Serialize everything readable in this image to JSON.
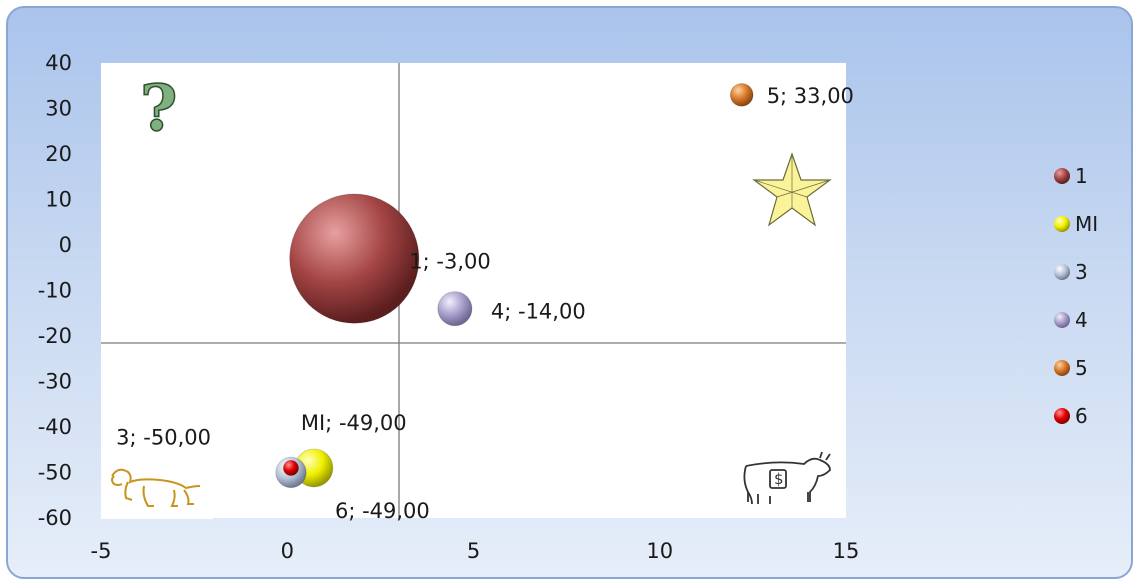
{
  "chart_data": {
    "type": "bubble",
    "xlim": [
      -5,
      15
    ],
    "ylim": [
      -60,
      40
    ],
    "x_ticks": [
      "-5",
      "0",
      "5",
      "10",
      "15"
    ],
    "y_ticks": [
      "40",
      "30",
      "20",
      "10",
      "0",
      "-10",
      "-20",
      "-30",
      "-40",
      "-50",
      "-60"
    ],
    "quadrant_divider": {
      "x": 3,
      "y": -21
    },
    "legend_position": "right",
    "series": [
      {
        "name": "1",
        "x": 1.8,
        "y": -3,
        "size": 34,
        "color": "#8e3a3a",
        "label": "1; -3,00"
      },
      {
        "name": "MI",
        "x": 0.5,
        "y": -49,
        "size": 10,
        "color": "#e6e600",
        "label": "MI; -49,00"
      },
      {
        "name": "3",
        "x": 0.1,
        "y": -50,
        "size": 8,
        "color": "#b9c6dc",
        "label": "3; -50,00"
      },
      {
        "name": "4",
        "x": 4.5,
        "y": -14,
        "size": 9,
        "color": "#a59ec9",
        "label": "4; -14,00"
      },
      {
        "name": "5",
        "x": 12.2,
        "y": 33,
        "size": 6,
        "color": "#d97a2b",
        "label": "5; 33,00"
      },
      {
        "name": "6",
        "x": 0.1,
        "y": -49,
        "size": 4,
        "color": "#e00000",
        "label": "6; -49,00"
      }
    ],
    "quadrant_icons": [
      "question-mark-icon",
      "star-icon",
      "dog-icon",
      "cash-cow-icon"
    ]
  }
}
